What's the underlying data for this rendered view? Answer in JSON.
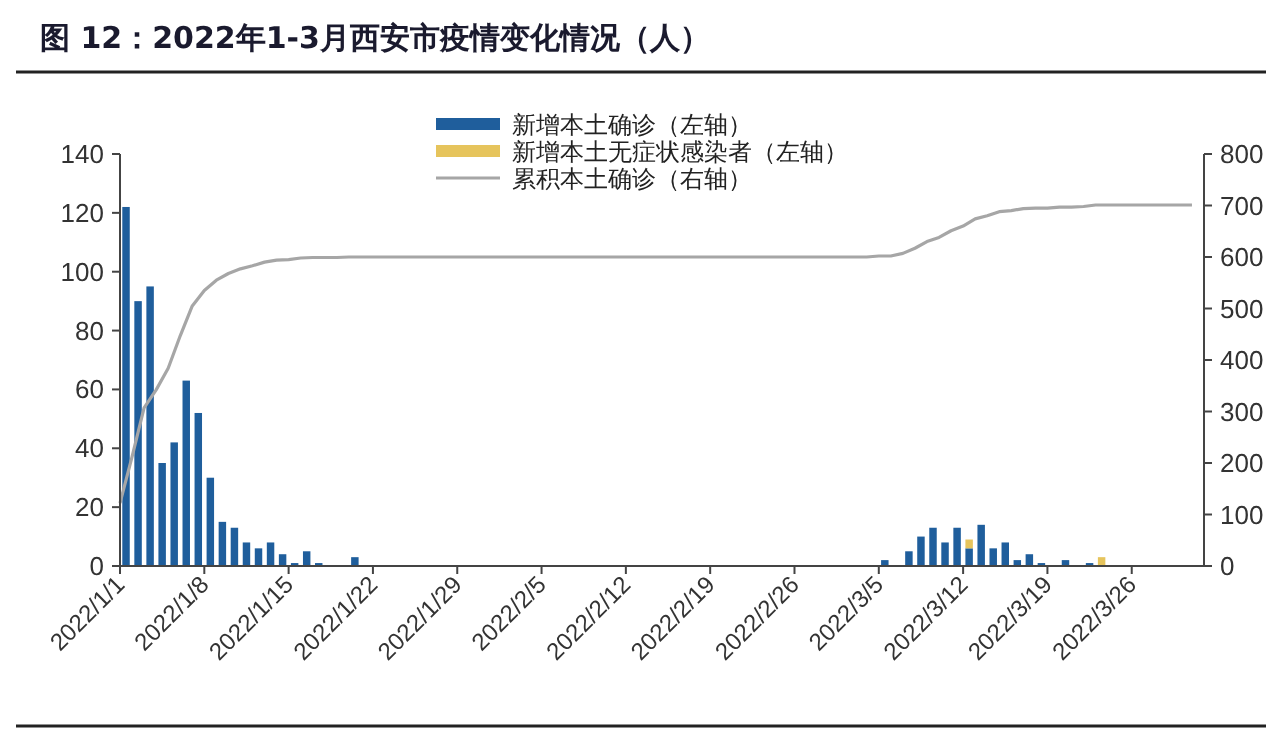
{
  "chart_data": {
    "type": "bar",
    "title": "图 12：2022年1-3月西安市疫情变化情况（人）",
    "x": [
      "2022-01-01",
      "2022-01-02",
      "2022-01-03",
      "2022-01-04",
      "2022-01-05",
      "2022-01-06",
      "2022-01-07",
      "2022-01-08",
      "2022-01-09",
      "2022-01-10",
      "2022-01-11",
      "2022-01-12",
      "2022-01-13",
      "2022-01-14",
      "2022-01-15",
      "2022-01-16",
      "2022-01-17",
      "2022-01-18",
      "2022-01-19",
      "2022-01-20",
      "2022-01-21",
      "2022-01-22",
      "2022-01-23",
      "2022-01-24",
      "2022-01-25",
      "2022-01-26",
      "2022-01-27",
      "2022-01-28",
      "2022-01-29",
      "2022-01-30",
      "2022-01-31",
      "2022-02-01",
      "2022-02-02",
      "2022-02-03",
      "2022-02-04",
      "2022-02-05",
      "2022-02-06",
      "2022-02-07",
      "2022-02-08",
      "2022-02-09",
      "2022-02-10",
      "2022-02-11",
      "2022-02-12",
      "2022-02-13",
      "2022-02-14",
      "2022-02-15",
      "2022-02-16",
      "2022-02-17",
      "2022-02-18",
      "2022-02-19",
      "2022-02-20",
      "2022-02-21",
      "2022-02-22",
      "2022-02-23",
      "2022-02-24",
      "2022-02-25",
      "2022-02-26",
      "2022-02-27",
      "2022-02-28",
      "2022-03-01",
      "2022-03-02",
      "2022-03-03",
      "2022-03-04",
      "2022-03-05",
      "2022-03-06",
      "2022-03-07",
      "2022-03-08",
      "2022-03-09",
      "2022-03-10",
      "2022-03-11",
      "2022-03-12",
      "2022-03-13",
      "2022-03-14",
      "2022-03-15",
      "2022-03-16",
      "2022-03-17",
      "2022-03-18",
      "2022-03-19",
      "2022-03-20",
      "2022-03-21",
      "2022-03-22",
      "2022-03-23",
      "2022-03-24",
      "2022-03-25",
      "2022-03-26",
      "2022-03-27",
      "2022-03-28",
      "2022-03-29",
      "2022-03-30",
      "2022-03-31"
    ],
    "series": [
      {
        "name": "新增本土确诊（左轴）",
        "color": "#1f5e9c",
        "values": [
          122,
          90,
          95,
          35,
          42,
          63,
          52,
          30,
          15,
          13,
          8,
          6,
          8,
          4,
          1,
          5,
          1,
          0,
          0,
          3,
          0,
          0,
          0,
          0,
          0,
          0,
          0,
          0,
          0,
          0,
          0,
          0,
          0,
          0,
          0,
          0,
          0,
          0,
          0,
          0,
          0,
          0,
          0,
          0,
          0,
          0,
          0,
          0,
          0,
          0,
          0,
          0,
          0,
          0,
          0,
          0,
          0,
          0,
          0,
          0,
          0,
          0,
          0,
          2,
          0,
          5,
          10,
          13,
          8,
          13,
          6,
          14,
          6,
          8,
          2,
          4,
          1,
          0,
          2,
          0,
          1,
          0,
          0,
          0,
          0,
          0,
          0,
          0,
          0,
          0
        ]
      },
      {
        "name": "新增本土无症状感染者（左轴）",
        "color": "#e6c45c",
        "values": [
          0,
          0,
          0,
          0,
          0,
          0,
          0,
          0,
          0,
          0,
          0,
          0,
          0,
          0,
          0,
          0,
          0,
          0,
          0,
          0,
          0,
          0,
          0,
          0,
          0,
          0,
          0,
          0,
          0,
          0,
          0,
          0,
          0,
          0,
          0,
          0,
          0,
          0,
          0,
          0,
          0,
          0,
          0,
          0,
          0,
          0,
          0,
          0,
          0,
          0,
          0,
          0,
          0,
          0,
          0,
          0,
          0,
          0,
          0,
          0,
          0,
          0,
          0,
          0,
          0,
          0,
          0,
          0,
          0,
          0,
          3,
          0,
          0,
          0,
          0,
          0,
          0,
          0,
          0,
          0,
          0,
          3,
          0,
          0,
          0,
          0,
          0,
          0,
          0,
          0
        ]
      },
      {
        "name": "累积本土确诊（右轴）",
        "type": "line",
        "axis": "y2",
        "color": "#a6a6a6",
        "values": [
          122,
          212,
          307,
          342,
          384,
          447,
          505,
          535,
          555,
          568,
          577,
          583,
          590,
          594,
          595,
          598,
          599,
          599,
          599,
          600,
          600,
          600,
          600,
          600,
          600,
          600,
          600,
          600,
          600,
          600,
          600,
          600,
          600,
          600,
          600,
          600,
          600,
          600,
          600,
          600,
          600,
          600,
          600,
          600,
          600,
          600,
          600,
          600,
          600,
          600,
          600,
          600,
          600,
          600,
          600,
          600,
          600,
          600,
          600,
          600,
          600,
          600,
          600,
          602,
          602,
          607,
          617,
          630,
          638,
          651,
          660,
          674,
          680,
          688,
          690,
          694,
          695,
          695,
          697,
          697,
          698,
          701,
          701,
          701,
          701,
          701,
          701,
          701,
          701,
          701
        ]
      }
    ],
    "stacked": true,
    "legend": "top",
    "xlim": [
      "2022-01-01",
      "2022-04-01"
    ],
    "xticks": [
      {
        "value": "2022-01-01",
        "label": "2022/1/1"
      },
      {
        "value": "2022-01-08",
        "label": "2022/1/8"
      },
      {
        "value": "2022-01-15",
        "label": "2022/1/15"
      },
      {
        "value": "2022-01-22",
        "label": "2022/1/22"
      },
      {
        "value": "2022-01-29",
        "label": "2022/1/29"
      },
      {
        "value": "2022-02-05",
        "label": "2022/2/5"
      },
      {
        "value": "2022-02-12",
        "label": "2022/2/12"
      },
      {
        "value": "2022-02-19",
        "label": "2022/2/19"
      },
      {
        "value": "2022-02-26",
        "label": "2022/2/26"
      },
      {
        "value": "2022-03-05",
        "label": "2022/3/5"
      },
      {
        "value": "2022-03-12",
        "label": "2022/3/12"
      },
      {
        "value": "2022-03-19",
        "label": "2022/3/19"
      },
      {
        "value": "2022-03-26",
        "label": "2022/3/26"
      }
    ],
    "ylim": [
      0,
      140
    ],
    "yticks": [
      0,
      20,
      40,
      60,
      80,
      100,
      120,
      140
    ],
    "y2lim": [
      0,
      800
    ],
    "y2ticks": [
      0,
      100,
      200,
      300,
      400,
      500,
      600,
      700,
      800
    ]
  }
}
